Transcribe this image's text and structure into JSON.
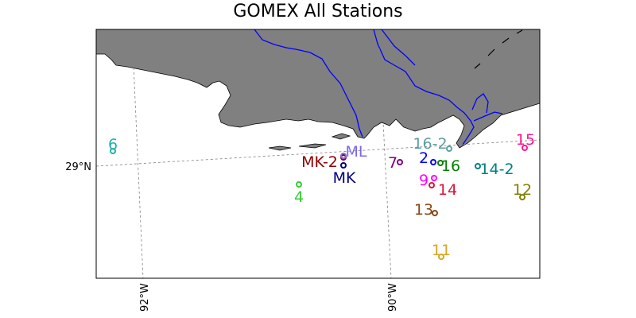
{
  "title": "GOMEX All Stations",
  "colors": {
    "land": "#808080",
    "water": "#ffffff",
    "river": "#0000ff",
    "grid": "#808080"
  },
  "axes": {
    "lon_ticks": [
      {
        "label": "92°W"
      },
      {
        "label": "90°W"
      }
    ],
    "lat_ticks": [
      {
        "label": "29°N"
      }
    ]
  },
  "stations": [
    {
      "id": "6",
      "color": "#1fb2a5"
    },
    {
      "id": "4",
      "color": "#32cd32"
    },
    {
      "id": "MK-2",
      "color": "#8b0000"
    },
    {
      "id": "ML",
      "color": "#7b68ee"
    },
    {
      "id": "MK",
      "color": "#000080"
    },
    {
      "id": "7",
      "color": "#800080"
    },
    {
      "id": "16-2",
      "color": "#5f9ea0"
    },
    {
      "id": "2",
      "color": "#0000ff"
    },
    {
      "id": "16",
      "color": "#008000"
    },
    {
      "id": "9",
      "color": "#ff00ff"
    },
    {
      "id": "14",
      "color": "#dc143c"
    },
    {
      "id": "14-2",
      "color": "#008080"
    },
    {
      "id": "15",
      "color": "#ff1493"
    },
    {
      "id": "12",
      "color": "#808000"
    },
    {
      "id": "13",
      "color": "#8b4513"
    },
    {
      "id": "11",
      "color": "#daa520"
    }
  ]
}
